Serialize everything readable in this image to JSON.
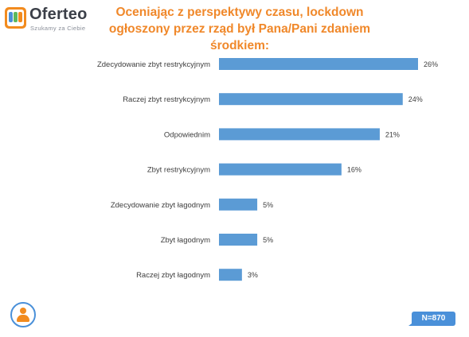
{
  "brand": {
    "name": "Oferteo",
    "tagline": "Szukamy za Ciebie",
    "color": "#f28b1e"
  },
  "sample_label": "N=870",
  "colors": {
    "bar": "#5b9bd5",
    "title": "#f0882a",
    "badge": "#4a90d9"
  },
  "icons": {
    "person": "person-icon",
    "logo": "oferteo-logo-icon"
  },
  "chart_data": {
    "type": "bar",
    "orientation": "horizontal",
    "title": "Oceniając z perspektywy czasu, lockdown ogłoszony przez rząd był Pana/Pani zdaniem środkiem:",
    "categories": [
      "Zdecydowanie zbyt restrykcyjnym",
      "Raczej zbyt restrykcyjnym",
      "Odpowiednim",
      "Zbyt restrykcyjnym",
      "Zdecydowanie zbyt łagodnym",
      "Zbyt łagodnym",
      "Raczej zbyt łagodnym"
    ],
    "values": [
      26,
      24,
      21,
      16,
      5,
      5,
      3
    ],
    "value_labels": [
      "26%",
      "24%",
      "21%",
      "16%",
      "5%",
      "5%",
      "3%"
    ],
    "unit": "%",
    "grid": false,
    "legend": "none"
  }
}
